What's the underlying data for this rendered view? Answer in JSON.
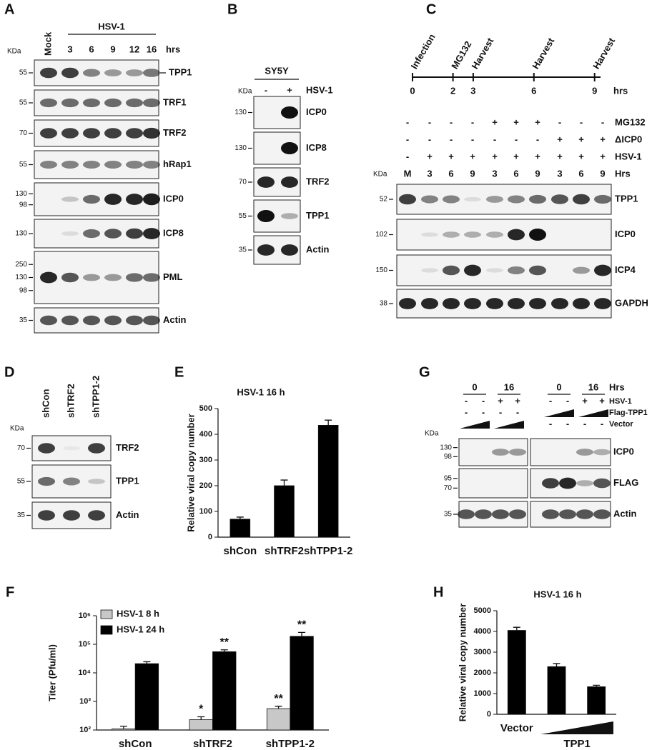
{
  "panels": {
    "A": {
      "letter": "A",
      "kda": "KDa",
      "group": "HSV-1",
      "unit": "hrs",
      "lanes": [
        "Mock",
        "3",
        "6",
        "9",
        "12",
        "16"
      ],
      "blots": [
        {
          "label": "TPP1",
          "markers": [
            "55"
          ]
        },
        {
          "label": "TRF1",
          "markers": [
            "55"
          ]
        },
        {
          "label": "TRF2",
          "markers": [
            "70"
          ]
        },
        {
          "label": "hRap1",
          "markers": [
            "55"
          ]
        },
        {
          "label": "ICP0",
          "markers": [
            "130",
            "98"
          ]
        },
        {
          "label": "ICP8",
          "markers": [
            "130"
          ]
        },
        {
          "label": "PML",
          "markers": [
            "250",
            "130",
            "98"
          ]
        },
        {
          "label": "Actin",
          "markers": [
            "35"
          ]
        }
      ]
    },
    "B": {
      "letter": "B",
      "cell_line": "SY5Y",
      "kda": "KDa",
      "condition": "HSV-1",
      "lanes": [
        "-",
        "+"
      ],
      "blots": [
        {
          "label": "ICP0",
          "markers": [
            "130"
          ]
        },
        {
          "label": "ICP8",
          "markers": [
            "130"
          ]
        },
        {
          "label": "TRF2",
          "markers": [
            "70"
          ]
        },
        {
          "label": "TPP1",
          "markers": [
            "55"
          ]
        },
        {
          "label": "Actin",
          "markers": [
            "35"
          ]
        }
      ]
    },
    "C": {
      "letter": "C",
      "timeline": {
        "events": [
          {
            "label": "Infection",
            "time": 0
          },
          {
            "label": "MG132",
            "time": 2
          },
          {
            "label": "Harvest",
            "time": 3
          },
          {
            "label": "Harvest",
            "time": 6
          },
          {
            "label": "Harvest",
            "time": 9
          }
        ],
        "unit": "hrs"
      },
      "conditions": [
        {
          "label": "MG132",
          "values": [
            "-",
            "-",
            "-",
            "-",
            "+",
            "+",
            "+",
            "-",
            "-",
            "-"
          ]
        },
        {
          "label": "ΔICP0",
          "values": [
            "-",
            "-",
            "-",
            "-",
            "-",
            "-",
            "-",
            "+",
            "+",
            "+"
          ]
        },
        {
          "label": "HSV-1",
          "values": [
            "-",
            "+",
            "+",
            "+",
            "+",
            "+",
            "+",
            "+",
            "+",
            "+"
          ]
        }
      ],
      "lane_label": "Hrs",
      "lanes": [
        "M",
        "3",
        "6",
        "9",
        "3",
        "6",
        "9",
        "3",
        "6",
        "9"
      ],
      "kda": "KDa",
      "blots": [
        {
          "label": "TPP1",
          "markers": [
            "52"
          ]
        },
        {
          "label": "ICP0",
          "markers": [
            "102"
          ]
        },
        {
          "label": "ICP4",
          "markers": [
            "150"
          ]
        },
        {
          "label": "GAPDH",
          "markers": [
            "38"
          ]
        }
      ]
    },
    "D": {
      "letter": "D",
      "kda": "KDa",
      "lanes": [
        "shCon",
        "shTRF2",
        "shTPP1-2"
      ],
      "blots": [
        {
          "label": "TRF2",
          "markers": [
            "70"
          ]
        },
        {
          "label": "TPP1",
          "markers": [
            "55"
          ]
        },
        {
          "label": "Actin",
          "markers": [
            "35"
          ]
        }
      ]
    },
    "G": {
      "letter": "G",
      "time_label": "Hrs",
      "time_groups": [
        "0",
        "16",
        "0",
        "16"
      ],
      "conditions": [
        {
          "label": "HSV-1",
          "values": [
            "-",
            "-",
            "+",
            "+",
            "-",
            "-",
            "+",
            "+"
          ]
        },
        {
          "label": "Flag-TPP1",
          "values": [
            "-",
            "-",
            "-",
            "-",
            null,
            null,
            null,
            null
          ]
        },
        {
          "label": "Vector",
          "values": [
            null,
            null,
            null,
            null,
            "-",
            "-",
            "-",
            "-"
          ]
        }
      ],
      "kda": "KDa",
      "blots": [
        {
          "label": "ICP0",
          "markers": [
            "130",
            "98"
          ]
        },
        {
          "label": "FLAG",
          "markers": [
            "95",
            "70"
          ]
        },
        {
          "label": "Actin",
          "markers": [
            "35"
          ]
        }
      ]
    }
  },
  "chart_data": [
    {
      "type": "bar",
      "panel": "E",
      "title": "HSV-1 16 h",
      "y_label": "Relative viral copy number",
      "categories": [
        "shCon",
        "shTRF2",
        "shTPP1-2"
      ],
      "values": [
        70,
        200,
        435
      ],
      "errors": [
        8,
        22,
        20
      ],
      "color": "#000000",
      "ylim": [
        0,
        500
      ],
      "yticks": [
        0,
        100,
        200,
        300,
        400,
        500
      ]
    },
    {
      "type": "bar",
      "panel": "F",
      "y_label": "Titer (Pfu/ml)",
      "log_scale": true,
      "categories": [
        "shCon",
        "shTRF2",
        "shTPP1-2"
      ],
      "series": [
        {
          "name": "HSV-1 8 h",
          "color": "#c8c8c8",
          "values": [
            110,
            230,
            560
          ],
          "errors": [
            25,
            60,
            120
          ],
          "significance": [
            null,
            "*",
            "**"
          ]
        },
        {
          "name": "HSV-1 24 h",
          "color": "#000000",
          "values": [
            21000,
            55000,
            190000
          ],
          "errors": [
            3500,
            9000,
            70000
          ],
          "significance": [
            null,
            "**",
            "**"
          ]
        }
      ],
      "ylim": [
        100,
        1000000
      ],
      "yticks": [
        {
          "value": 100,
          "label": "10²"
        },
        {
          "value": 1000,
          "label": "10³"
        },
        {
          "value": 10000,
          "label": "10⁴"
        },
        {
          "value": 100000,
          "label": "10⁵"
        },
        {
          "value": 1000000,
          "label": "10⁶"
        }
      ],
      "legend": "top-left"
    },
    {
      "type": "bar",
      "panel": "H",
      "title": "HSV-1 16 h",
      "y_label": "Relative viral copy number",
      "categories": [
        "Vector",
        null,
        null
      ],
      "x_group_label": "TPP1",
      "values": [
        4050,
        2300,
        1330
      ],
      "errors": [
        150,
        150,
        70
      ],
      "color": "#000000",
      "ylim": [
        0,
        5000
      ],
      "yticks": [
        0,
        1000,
        2000,
        3000,
        4000,
        5000
      ]
    }
  ]
}
